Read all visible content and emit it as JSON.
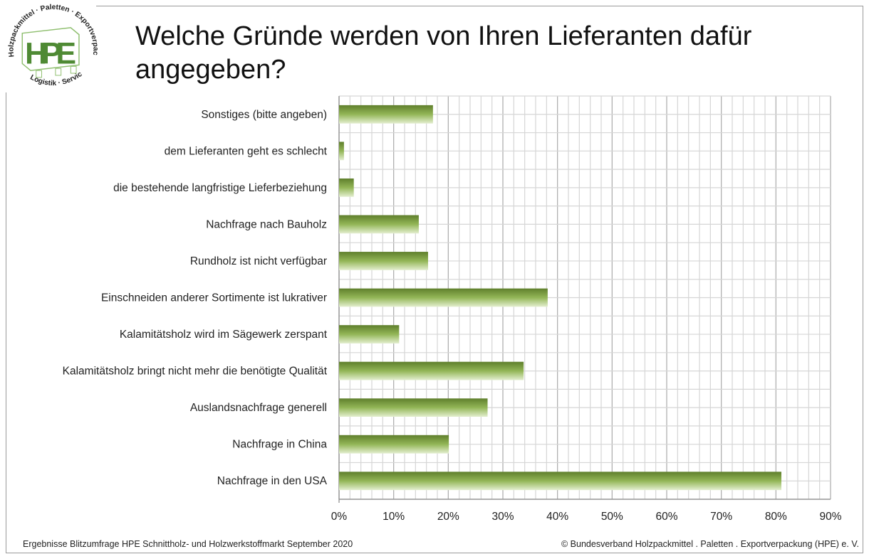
{
  "title": "Welche Gründe werden von Ihren Lieferanten dafür angegeben?",
  "logo": {
    "text": "HPE",
    "ring_top": "Holzpackmittel · Paletten · Exportverpackung",
    "ring_bottom": "Logistik · Service",
    "color": "#4f8a34"
  },
  "footer": {
    "left": "Ergebnisse Blitzumfrage HPE Schnittholz- und Holzwerkstoffmarkt September 2020",
    "right": "© Bundesverband Holzpackmittel . Paletten . Exportverpackung (HPE) e. V."
  },
  "chart_data": {
    "type": "bar",
    "orientation": "horizontal",
    "title": "",
    "xlabel": "",
    "ylabel": "",
    "xlim": [
      0,
      90
    ],
    "grid": true,
    "bar_color": "#7fa646",
    "x_ticks": [
      "0%",
      "10%",
      "20%",
      "30%",
      "40%",
      "50%",
      "60%",
      "70%",
      "80%",
      "90%"
    ],
    "categories": [
      "Sonstiges (bitte angeben)",
      "dem Lieferanten geht es schlecht",
      "die bestehende langfristige Lieferbeziehung",
      "Nachfrage nach Bauholz",
      "Rundholz ist nicht verfügbar",
      "Einschneiden anderer Sortimente ist lukrativer",
      "Kalamitätsholz wird im Sägewerk zerspant",
      "Kalamitätsholz bringt nicht mehr die benötigte Qualität",
      "Auslandsnachfrage generell",
      "Nachfrage in China",
      "Nachfrage in den USA"
    ],
    "values": [
      17.2,
      0.9,
      2.7,
      14.6,
      16.3,
      38.2,
      11.0,
      33.8,
      27.2,
      20.1,
      81.0
    ]
  }
}
